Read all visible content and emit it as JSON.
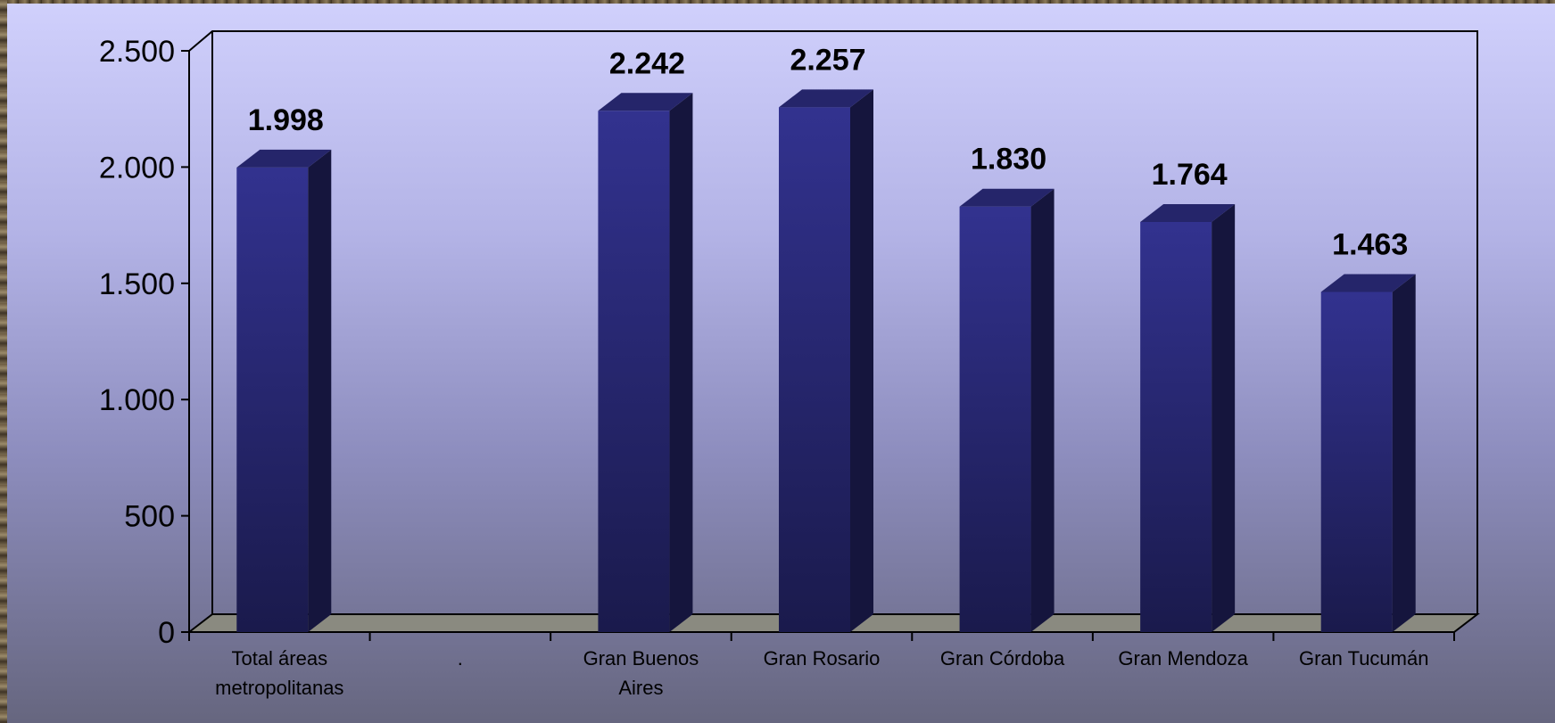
{
  "chart_data": {
    "type": "bar",
    "style": "3d-column",
    "categories": [
      [
        "Total áreas",
        "metropolitanas"
      ],
      [
        "."
      ],
      [
        "Gran Buenos",
        "Aires"
      ],
      [
        "Gran Rosario"
      ],
      [
        "Gran Córdoba"
      ],
      [
        "Gran Mendoza"
      ],
      [
        "Gran Tucumán"
      ]
    ],
    "values": [
      1998,
      null,
      2242,
      2257,
      1830,
      1764,
      1463
    ],
    "data_labels": [
      "1.998",
      "",
      "2.242",
      "2.257",
      "1.830",
      "1.764",
      "1.463"
    ],
    "ylim": [
      0,
      2500
    ],
    "yticks": [
      0,
      500,
      1000,
      1500,
      2000,
      2500
    ],
    "ytick_labels": [
      "0",
      "500",
      "1.000",
      "1.500",
      "2.000",
      "2.500"
    ],
    "grid": false,
    "legend": "none",
    "colors": {
      "bar_front_top": "#32328f",
      "bar_front_bottom": "#1a1a4c",
      "bar_side": "#15153d",
      "bar_top": "#25256a",
      "floor": "#8a8a80"
    }
  }
}
